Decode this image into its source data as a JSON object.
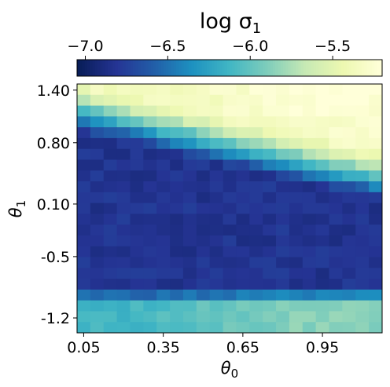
{
  "chart_data": {
    "type": "heatmap",
    "title": "log σ",
    "title_subscript": "1",
    "xlabel": "θ",
    "xlabel_subscript": "0",
    "ylabel": "θ",
    "ylabel_subscript": "1",
    "colorbar": {
      "ticks": [
        "−7.0",
        "−6.5",
        "−6.0",
        "−5.5"
      ],
      "tick_values": [
        -7.0,
        -6.5,
        -6.0,
        -5.5
      ],
      "range": [
        -7.05,
        -5.2
      ],
      "colormap": [
        "#081d58",
        "#253494",
        "#225ea8",
        "#1d91c0",
        "#41b6c4",
        "#7fcdbb",
        "#c7e9b4",
        "#edf8b1",
        "#ffffd9"
      ],
      "placement": "top"
    },
    "x_ticks": [
      "0.05",
      "0.35",
      "0.65",
      "0.95"
    ],
    "x_tick_values": [
      0.05,
      0.35,
      0.65,
      0.95
    ],
    "x_range": [
      0.025,
      1.175
    ],
    "y_ticks": [
      "1.40",
      "0.80",
      "0.10",
      "-0.5",
      "-1.2"
    ],
    "y_tick_values": [
      1.4,
      0.8,
      0.1,
      -0.5,
      -1.2
    ],
    "y_range": [
      -1.37,
      1.47
    ],
    "grid_size": [
      23,
      23
    ],
    "grid": false
  }
}
